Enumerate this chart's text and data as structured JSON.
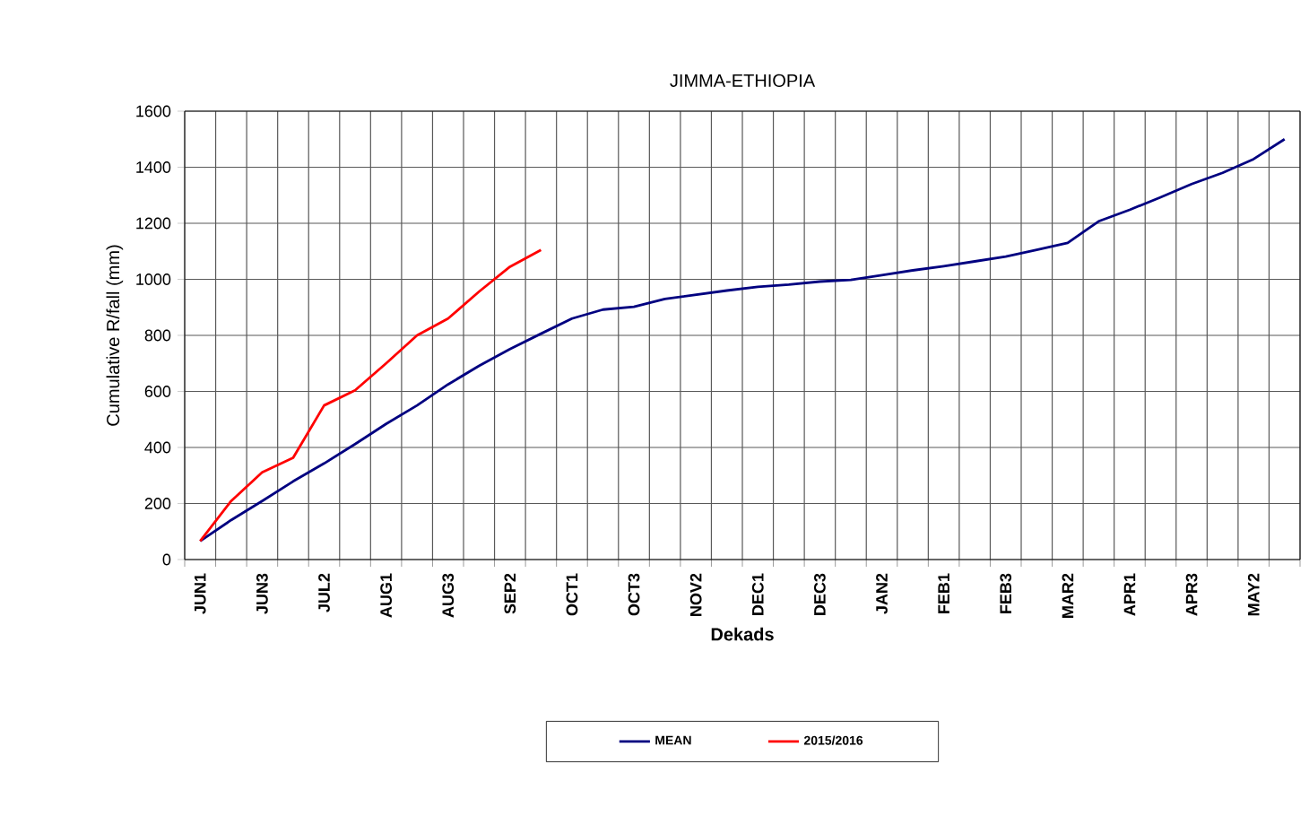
{
  "chart_data": {
    "type": "line",
    "title": "JIMMA-ETHIOPIA",
    "xlabel": "Dekads",
    "ylabel": "Cumulative R/fall (mm)",
    "categories": [
      "JUN1",
      null,
      "JUN3",
      null,
      "JUL2",
      null,
      "AUG1",
      null,
      "AUG3",
      null,
      "SEP2",
      null,
      "OCT1",
      null,
      "OCT3",
      null,
      "NOV2",
      null,
      "DEC1",
      null,
      "DEC3",
      null,
      "JAN2",
      null,
      "FEB1",
      null,
      "FEB3",
      null,
      "MAR2",
      null,
      "APR1",
      null,
      "APR3",
      null,
      "MAY2",
      null
    ],
    "series": [
      {
        "name": "MEAN",
        "color": "#000080",
        "values": [
          66,
          141,
          209,
          279,
          343,
          412,
          484,
          550,
          625,
          691,
          751,
          806,
          860,
          892,
          902,
          930,
          945,
          960,
          973,
          981,
          992,
          998,
          1015,
          1032,
          1047,
          1064,
          1081,
          1105,
          1130,
          1207,
          1248,
          1293,
          1340,
          1380,
          1429,
          1500
        ]
      },
      {
        "name": "2015/2016",
        "color": "#ff0000",
        "values": [
          66,
          209,
          311,
          363,
          550,
          604,
          700,
          800,
          860,
          956,
          1045,
          1105,
          null,
          null,
          null,
          null,
          null,
          null,
          null,
          null,
          null,
          null,
          null,
          null,
          null,
          null,
          null,
          null,
          null,
          null,
          null,
          null,
          null,
          null,
          null,
          null
        ]
      }
    ],
    "ylim": [
      0,
      1600
    ],
    "yticks": [
      0,
      200,
      400,
      600,
      800,
      1000,
      1200,
      1400,
      1600
    ],
    "grid": true,
    "legend": "bottom",
    "marker": "none",
    "line_style": "solid"
  }
}
